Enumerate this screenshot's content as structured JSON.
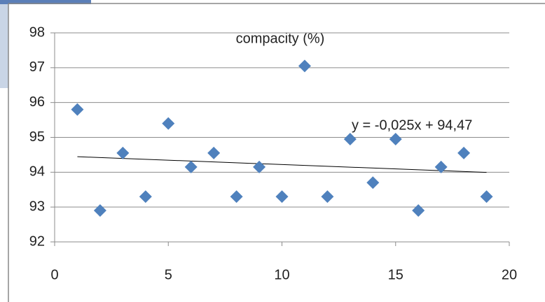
{
  "chart_data": {
    "type": "scatter",
    "title": "compacity (%)",
    "x": [
      1,
      2,
      3,
      4,
      5,
      6,
      7,
      8,
      9,
      10,
      11,
      12,
      13,
      14,
      15,
      16,
      17,
      18,
      19
    ],
    "values": [
      95.8,
      92.9,
      94.55,
      93.3,
      95.4,
      94.15,
      94.55,
      93.3,
      94.15,
      93.3,
      97.05,
      93.3,
      94.95,
      93.7,
      94.95,
      92.9,
      94.15,
      94.55,
      93.3
    ],
    "color": "#4f81bd",
    "xlim": [
      0,
      20
    ],
    "xticks": [
      0,
      5,
      10,
      15,
      20
    ],
    "ylim": [
      92,
      98
    ],
    "yticks": [
      92,
      93,
      94,
      95,
      96,
      97,
      98
    ],
    "grid": true,
    "trendline": {
      "slope": -0.025,
      "intercept": 94.47,
      "label": "y = -0,025x + 94,47"
    }
  }
}
